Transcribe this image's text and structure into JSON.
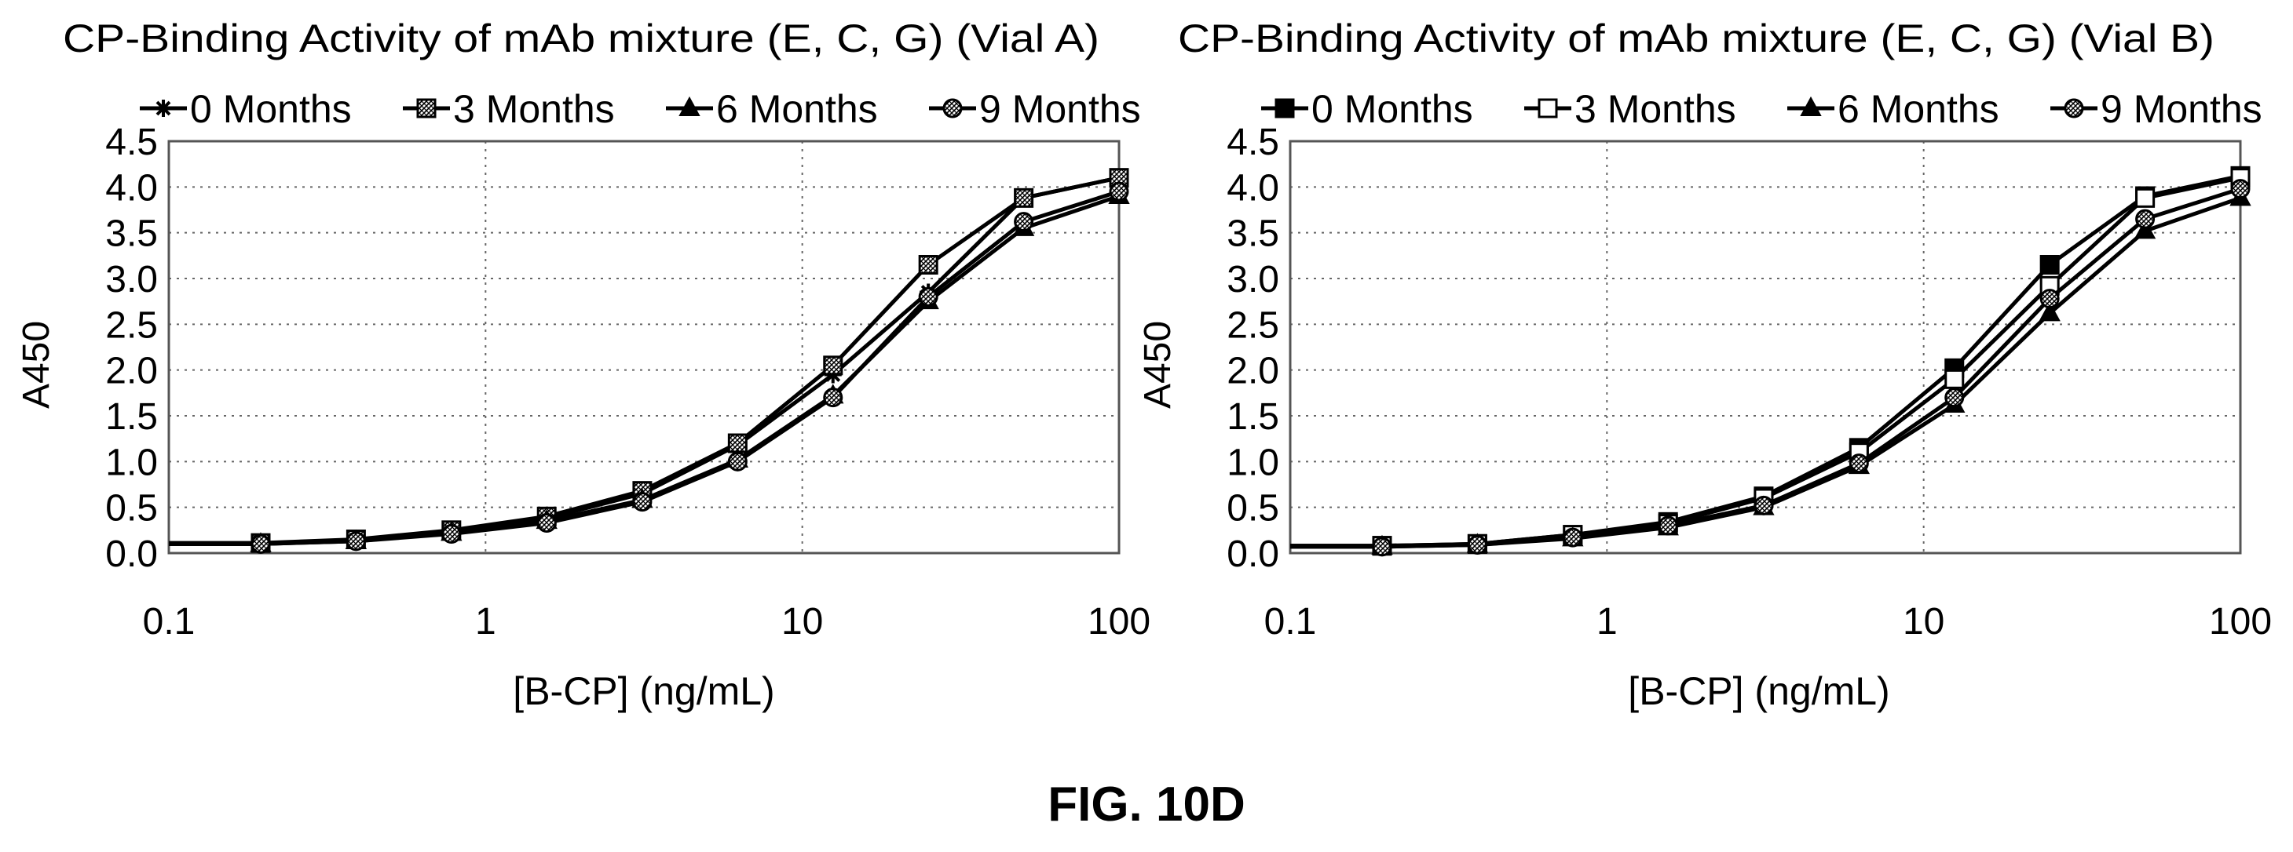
{
  "figure_caption": "FIG. 10D",
  "chart_data": [
    {
      "type": "line",
      "title": "CP-Binding Activity of mAb mixture (E, C, G) (Vial A)",
      "xlabel": "[B-CP] (ng/mL)",
      "ylabel": "A450",
      "xscale": "log",
      "xlim": [
        0.1,
        100
      ],
      "ylim": [
        0,
        4.5
      ],
      "xticks": [
        "0.1",
        "1",
        "10",
        "100"
      ],
      "yticks": [
        "0.0",
        "0.5",
        "1.0",
        "1.5",
        "2.0",
        "2.5",
        "3.0",
        "3.5",
        "4.0",
        "4.5"
      ],
      "grid": true,
      "legend": "top",
      "x": [
        0.195,
        0.39,
        0.78,
        1.56,
        3.125,
        6.25,
        12.5,
        25,
        50,
        100
      ],
      "series": [
        {
          "name": "0 Months",
          "marker": "asterisk",
          "values": [
            0.1,
            0.14,
            0.24,
            0.38,
            0.65,
            1.18,
            1.95,
            2.85,
            3.88,
            4.1
          ]
        },
        {
          "name": "3 Months",
          "marker": "square-hatched",
          "values": [
            0.11,
            0.15,
            0.25,
            0.4,
            0.68,
            1.2,
            2.05,
            3.15,
            3.88,
            4.1
          ]
        },
        {
          "name": "6 Months",
          "marker": "triangle",
          "values": [
            0.1,
            0.13,
            0.22,
            0.35,
            0.58,
            1.02,
            1.72,
            2.75,
            3.55,
            3.9
          ]
        },
        {
          "name": "9 Months",
          "marker": "circle-hatched",
          "values": [
            0.1,
            0.13,
            0.21,
            0.33,
            0.56,
            1.0,
            1.7,
            2.8,
            3.62,
            3.95
          ]
        }
      ]
    },
    {
      "type": "line",
      "title": "CP-Binding Activity of mAb mixture (E, C, G) (Vial B)",
      "xlabel": "[B-CP] (ng/mL)",
      "ylabel": "A450",
      "xscale": "log",
      "xlim": [
        0.1,
        100
      ],
      "ylim": [
        0,
        4.5
      ],
      "xticks": [
        "0.1",
        "1",
        "10",
        "100"
      ],
      "yticks": [
        "0.0",
        "0.5",
        "1.0",
        "1.5",
        "2.0",
        "2.5",
        "3.0",
        "3.5",
        "4.0",
        "4.5"
      ],
      "grid": true,
      "legend": "top",
      "x": [
        0.195,
        0.39,
        0.78,
        1.56,
        3.125,
        6.25,
        12.5,
        25,
        50,
        100
      ],
      "series": [
        {
          "name": "0 Months",
          "marker": "square-filled",
          "values": [
            0.08,
            0.1,
            0.2,
            0.34,
            0.62,
            1.15,
            2.02,
            3.15,
            3.9,
            4.12
          ]
        },
        {
          "name": "3 Months",
          "marker": "square-open",
          "values": [
            0.08,
            0.1,
            0.2,
            0.32,
            0.6,
            1.1,
            1.9,
            2.92,
            3.88,
            4.1
          ]
        },
        {
          "name": "6 Months",
          "marker": "triangle",
          "values": [
            0.07,
            0.09,
            0.16,
            0.28,
            0.5,
            0.95,
            1.62,
            2.62,
            3.52,
            3.88
          ]
        },
        {
          "name": "9 Months",
          "marker": "circle-hatched",
          "values": [
            0.07,
            0.09,
            0.17,
            0.3,
            0.52,
            0.98,
            1.7,
            2.78,
            3.65,
            3.98
          ]
        }
      ]
    }
  ]
}
